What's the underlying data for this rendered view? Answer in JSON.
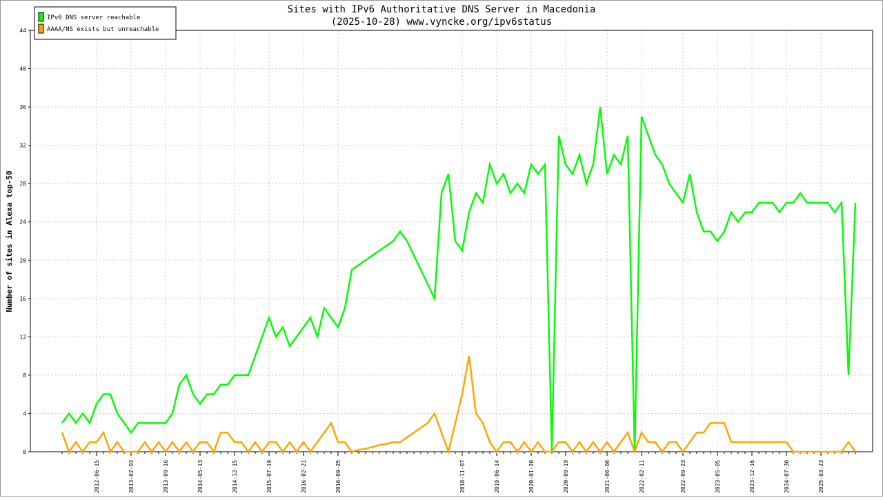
{
  "chart_data": {
    "type": "line",
    "title": "Sites with IPv6 Authoritative DNS Server in Macedonia",
    "subtitle": "(2025-10-28) www.vyncke.org/ipv6status",
    "y_label": "Number of sites in Alexa top-50",
    "categories": [
      null,
      null,
      null,
      null,
      null,
      "2012-06-15",
      null,
      null,
      null,
      null,
      "2013-02-03",
      null,
      null,
      null,
      null,
      "2013-09-16",
      null,
      null,
      null,
      null,
      "2014-05-13",
      null,
      null,
      null,
      null,
      "2014-12-15",
      null,
      null,
      null,
      null,
      "2015-07-19",
      null,
      null,
      null,
      null,
      "2016-02-21",
      null,
      null,
      null,
      null,
      "2016-09-25",
      null,
      null,
      null,
      null,
      null,
      null,
      null,
      null,
      null,
      null,
      null,
      null,
      null,
      null,
      null,
      null,
      null,
      "2018-11-07",
      null,
      null,
      null,
      null,
      "2019-06-14",
      null,
      null,
      null,
      null,
      "2020-01-20",
      null,
      null,
      null,
      null,
      "2020-09-19",
      null,
      null,
      null,
      null,
      null,
      "2021-06-06",
      null,
      null,
      null,
      null,
      "2022-02-11",
      null,
      null,
      null,
      null,
      null,
      "2022-09-23",
      null,
      null,
      null,
      null,
      "2023-05-05",
      null,
      null,
      null,
      null,
      "2023-12-16",
      null,
      null,
      null,
      null,
      "2024-07-30",
      null,
      null,
      null,
      null,
      "2025-03-23",
      null,
      null,
      null,
      null,
      null
    ],
    "series": [
      {
        "name": "IPv6 DNS server reachable",
        "color": "#00ff00",
        "values": [
          3,
          4,
          3,
          4,
          3,
          5,
          6,
          6,
          4,
          3,
          2,
          3,
          3,
          3,
          3,
          3,
          4,
          7,
          8,
          6,
          5,
          6,
          6,
          7,
          7,
          8,
          8,
          8,
          10,
          12,
          14,
          12,
          13,
          11,
          12,
          13,
          14,
          12,
          15,
          14,
          13,
          15,
          19,
          19.5,
          20,
          20.5,
          21,
          21.5,
          22,
          23,
          22,
          20.5,
          19,
          17.5,
          16,
          27,
          29,
          22,
          21,
          25,
          27,
          26,
          30,
          28,
          29,
          27,
          28,
          27,
          30,
          29,
          30,
          0,
          33,
          30,
          29,
          31,
          28,
          30,
          36,
          29,
          31,
          30,
          33,
          0,
          35,
          33,
          31,
          30,
          28,
          27,
          26,
          29,
          25,
          23,
          23,
          22,
          23,
          25,
          24,
          25,
          25,
          26,
          26,
          26,
          25,
          26,
          26,
          27,
          26,
          26,
          26,
          26,
          25,
          26,
          8,
          26
        ]
      },
      {
        "name": "AAAA/NS exists but unreachable",
        "color": "#ffa500",
        "values": [
          2,
          0,
          1,
          0,
          1,
          1,
          2,
          0,
          1,
          0,
          0,
          0,
          1,
          0,
          1,
          0,
          1,
          0,
          1,
          0,
          1,
          1,
          0,
          2,
          2,
          1,
          1,
          0,
          1,
          0,
          1,
          1,
          0,
          1,
          0,
          1,
          0,
          1,
          2,
          3,
          1,
          1,
          0,
          0.2,
          0.3,
          0.5,
          0.7,
          0.8,
          1,
          1,
          1.5,
          2,
          2.5,
          3,
          4,
          2,
          0,
          3,
          6,
          10,
          4,
          3,
          1,
          0,
          1,
          1,
          0,
          1,
          0,
          1,
          0,
          0,
          1,
          1,
          0,
          1,
          0,
          1,
          0,
          1,
          0,
          1,
          2,
          0,
          2,
          1,
          1,
          0,
          1,
          1,
          0,
          1,
          2,
          2,
          3,
          3,
          3,
          1,
          1,
          1,
          1,
          1,
          1,
          1,
          1,
          1,
          0,
          0,
          0,
          0,
          0,
          0,
          0,
          0,
          1,
          0
        ]
      }
    ],
    "ylim": [
      0,
      44
    ],
    "yticks": [
      0,
      4,
      8,
      12,
      16,
      20,
      24,
      28,
      32,
      36,
      40,
      44
    ],
    "grid": true,
    "legend": "top-left"
  }
}
